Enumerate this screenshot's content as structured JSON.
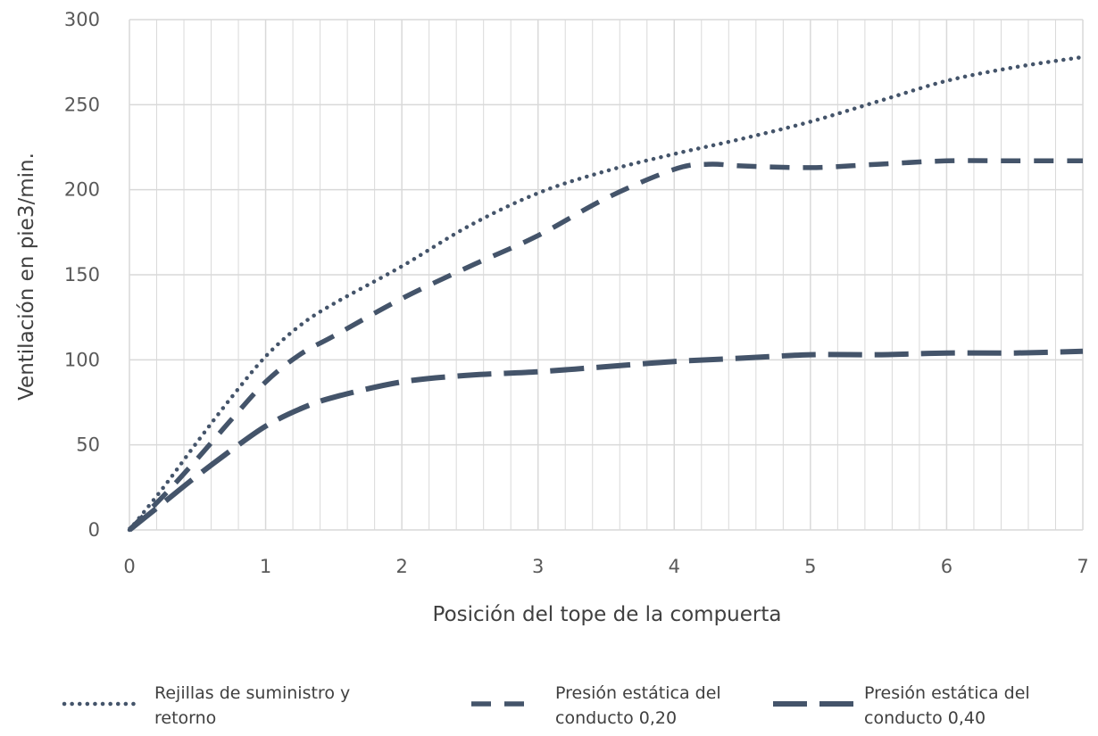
{
  "chart_data": {
    "type": "line",
    "title": "",
    "xlabel": "Posición del tope de la compuerta",
    "ylabel": "Ventilación en pie3/min.",
    "xlim": [
      0,
      7
    ],
    "ylim": [
      0,
      300
    ],
    "x_ticks": [
      0,
      1,
      2,
      3,
      4,
      5,
      6,
      7
    ],
    "y_ticks": [
      0,
      50,
      100,
      150,
      200,
      250,
      300
    ],
    "x_minor_step": 0.2,
    "grid": true,
    "legend_position": "bottom",
    "colors": {
      "series": "#44546a",
      "grid": "#d9d9d9"
    },
    "series": [
      {
        "name": "Rejillas de suministro y retorno",
        "style": "dotted",
        "legend_lines": [
          "Rejillas de suministro y",
          "retorno"
        ],
        "x": [
          0,
          0.25,
          0.5,
          0.75,
          1,
          1.25,
          1.5,
          2,
          2.5,
          3,
          3.5,
          4,
          4.5,
          5,
          5.5,
          6,
          6.5,
          7
        ],
        "y": [
          0,
          25,
          52,
          78,
          102,
          120,
          133,
          155,
          179,
          198,
          211,
          221,
          230,
          240,
          252,
          264,
          272,
          278
        ]
      },
      {
        "name": "Presión estática del conducto 0,20",
        "style": "dashed",
        "legend_lines": [
          "Presión estática del",
          "conducto 0,20"
        ],
        "x": [
          0,
          0.25,
          0.5,
          0.75,
          1,
          1.25,
          1.5,
          2,
          2.5,
          3,
          3.5,
          4,
          4.25,
          4.5,
          5,
          5.5,
          6,
          6.5,
          7
        ],
        "y": [
          0,
          20,
          42,
          65,
          87,
          103,
          114,
          136,
          155,
          173,
          195,
          212,
          215,
          214,
          213,
          215,
          217,
          217,
          217
        ]
      },
      {
        "name": "Presión estática del conducto 0,40",
        "style": "long-dashed",
        "legend_lines": [
          "Presión estática del",
          "conducto 0,40"
        ],
        "x": [
          0,
          0.25,
          0.5,
          0.75,
          1,
          1.25,
          1.5,
          2,
          2.5,
          3,
          3.5,
          4,
          4.5,
          5,
          5.5,
          6,
          6.5,
          7
        ],
        "y": [
          0,
          16,
          32,
          47,
          61,
          71,
          78,
          87,
          91,
          93,
          96,
          99,
          101,
          103,
          103,
          104,
          104,
          105
        ]
      }
    ]
  }
}
